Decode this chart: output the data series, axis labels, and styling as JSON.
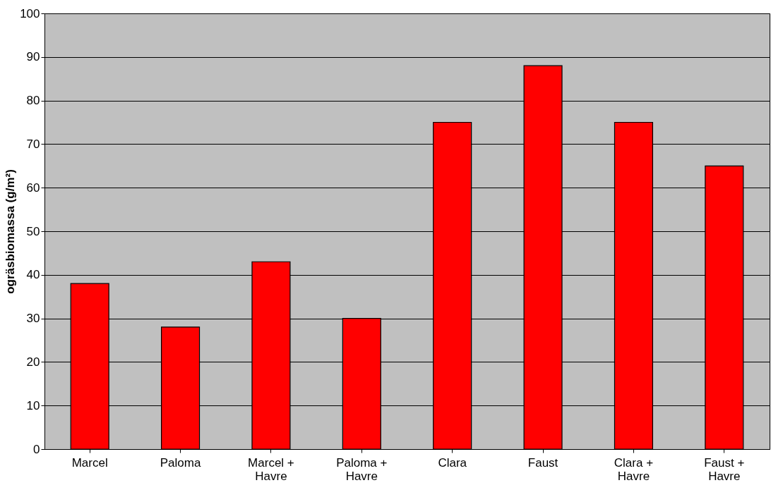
{
  "chart_data": {
    "type": "bar",
    "ylabel": "ogräsbiomassa (g/m²)",
    "categories": [
      "Marcel",
      "Paloma",
      "Marcel + Havre",
      "Paloma + Havre",
      "Clara",
      "Faust",
      "Clara + Havre",
      "Faust + Havre"
    ],
    "values": [
      38,
      28,
      43,
      30,
      75,
      88,
      75,
      65
    ],
    "color": "#ff0000",
    "ylim": [
      0,
      100
    ],
    "yticks": [
      0,
      10,
      20,
      30,
      40,
      50,
      60,
      70,
      80,
      90,
      100
    ],
    "grid": "y"
  }
}
